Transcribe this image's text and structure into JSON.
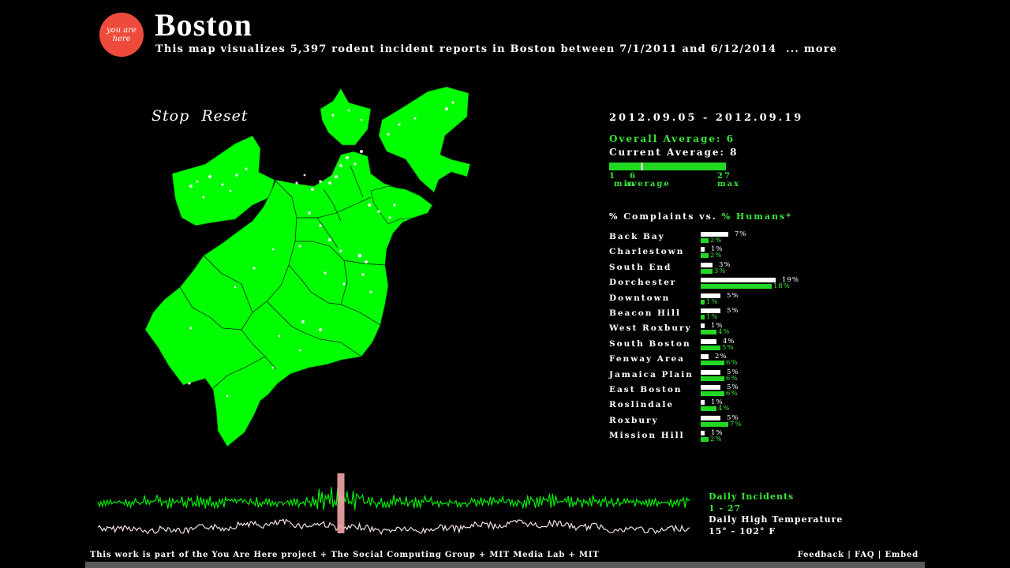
{
  "header": {
    "logo_text": "you are here",
    "title": "Boston",
    "subtitle": "This map visualizes 5,397 rodent incident reports in Boston between 7/1/2011 and 6/12/2014",
    "more_link": "... more"
  },
  "controls": {
    "stop_label": "Stop",
    "reset_label": "Reset"
  },
  "stats": {
    "date_range": "2012.09.05 - 2012.09.19",
    "overall_average": "Overall Average: 6",
    "current_average": "Current Average: 8",
    "range_min_value": "1",
    "range_avg_value": "6",
    "range_max_value": "27",
    "range_min_label": "min",
    "range_avg_label": "average",
    "range_max_label": "max",
    "current_fraction": 0.27
  },
  "comparison": {
    "header_complaints": "% Complaints vs.",
    "header_humans": "% Humans*",
    "neighborhoods": [
      {
        "name": "Back Bay",
        "complaints": 7,
        "humans": 2
      },
      {
        "name": "Charlestown",
        "complaints": 1,
        "humans": 2
      },
      {
        "name": "South End",
        "complaints": 3,
        "humans": 3
      },
      {
        "name": "Dorchester",
        "complaints": 19,
        "humans": 18
      },
      {
        "name": "Downtown",
        "complaints": 5,
        "humans": 1
      },
      {
        "name": "Beacon Hill",
        "complaints": 5,
        "humans": 1
      },
      {
        "name": "West Roxbury",
        "complaints": 1,
        "humans": 4
      },
      {
        "name": "South Boston",
        "complaints": 4,
        "humans": 5
      },
      {
        "name": "Fenway Area",
        "complaints": 2,
        "humans": 6
      },
      {
        "name": "Jamaica Plain",
        "complaints": 5,
        "humans": 6
      },
      {
        "name": "East Boston",
        "complaints": 5,
        "humans": 6
      },
      {
        "name": "Roslindale",
        "complaints": 1,
        "humans": 4
      },
      {
        "name": "Roxbury",
        "complaints": 5,
        "humans": 7
      },
      {
        "name": "Mission Hill",
        "complaints": 1,
        "humans": 2
      }
    ]
  },
  "timeline": {
    "incidents_label": "Daily Incidents",
    "incidents_range": "1 - 27",
    "temperature_label": "Daily High Temperature",
    "temperature_range": "15° - 102° F",
    "selection_fraction": 0.41
  },
  "footer": {
    "credit": "This work is part of the You Are Here project + The Social Computing Group + MIT Media Lab + MIT",
    "feedback": "Feedback",
    "faq": "FAQ",
    "embed": "Embed",
    "separator": "|"
  },
  "colors": {
    "map_green": "#00ff00",
    "accent_green": "#39e639",
    "logo_red": "#ef4b3c",
    "temperature_line": "#f3e2e2",
    "selection_pink": "#f4a6a6"
  }
}
